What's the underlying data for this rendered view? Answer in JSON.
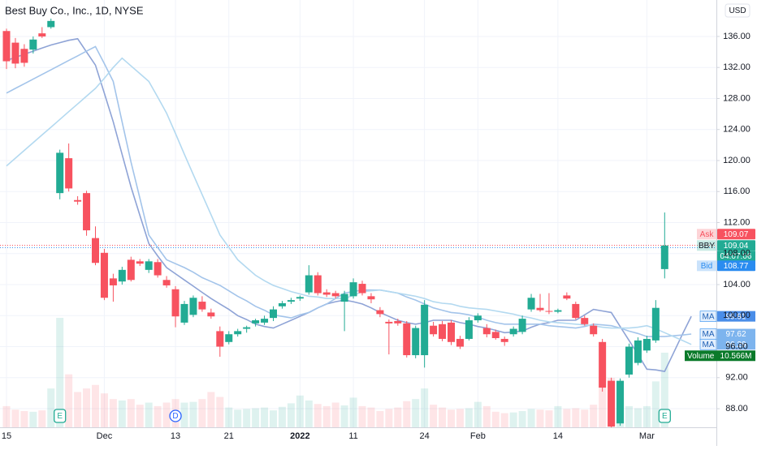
{
  "chart_data": {
    "type": "candlestick",
    "title": "Best Buy Co., Inc., 1D, NYSE",
    "currency": "USD",
    "categories": [
      "15",
      null,
      null,
      null,
      null,
      null,
      null,
      null,
      null,
      null,
      null,
      "Dec",
      null,
      null,
      null,
      null,
      null,
      null,
      null,
      "13",
      null,
      null,
      null,
      null,
      null,
      "21",
      null,
      null,
      null,
      null,
      null,
      null,
      null,
      "2022",
      null,
      null,
      null,
      null,
      null,
      "11",
      null,
      null,
      null,
      null,
      null,
      null,
      null,
      "24",
      null,
      null,
      null,
      null,
      null,
      "Feb",
      null,
      null,
      null,
      null,
      null,
      null,
      null,
      null,
      "14",
      null,
      null,
      null,
      null,
      null,
      null,
      null,
      null,
      null,
      "Mar",
      null,
      null,
      null,
      null,
      null
    ],
    "up_color": "#22ab94",
    "down_color": "#f7525f",
    "open": [
      136.7,
      135.2,
      134.4,
      134.3,
      136.4,
      137.2,
      115.8,
      120.3,
      114.9,
      115.8,
      110.0,
      108.1,
      104.8,
      104.4,
      107.2,
      107.0,
      105.9,
      106.9,
      104.6,
      103.4,
      99.1,
      100.1,
      101.8,
      100.4,
      98.0,
      96.6,
      97.6,
      98.3,
      99.0,
      99.1,
      99.7,
      101.2,
      101.8,
      102.2,
      103.0,
      105.2,
      103.0,
      102.9,
      101.8,
      102.5,
      104.1,
      102.5,
      100.7,
      99.2,
      99.3,
      99.0,
      94.9,
      94.9,
      98.7,
      98.9,
      99.1,
      97.0,
      97.0,
      99.4,
      98.4,
      97.9,
      97.0,
      97.6,
      97.9,
      100.8,
      101.0,
      100.6,
      100.5,
      102.6,
      101.5,
      99.7,
      98.7,
      96.6,
      91.6,
      86.1,
      92.4,
      93.9,
      95.5,
      96.8,
      106.0,
      null,
      null,
      null
    ],
    "high": [
      137.0,
      135.8,
      135.0,
      136.0,
      137.2,
      138.3,
      121.4,
      122.2,
      115.4,
      116.1,
      111.5,
      108.6,
      105.4,
      106.3,
      107.6,
      107.3,
      107.3,
      107.3,
      105.1,
      103.8,
      101.9,
      102.6,
      102.5,
      100.9,
      98.6,
      98.0,
      98.3,
      98.7,
      99.6,
      100.0,
      101.2,
      101.9,
      102.3,
      102.6,
      106.5,
      105.6,
      103.4,
      103.2,
      103.2,
      104.8,
      104.5,
      102.9,
      101.1,
      99.5,
      99.6,
      99.3,
      98.7,
      102.0,
      99.2,
      99.3,
      99.4,
      97.4,
      99.8,
      100.3,
      98.9,
      98.2,
      97.3,
      98.6,
      100.0,
      102.8,
      102.8,
      102.9,
      100.9,
      103.0,
      101.8,
      100.0,
      99.0,
      97.0,
      92.0,
      91.9,
      96.4,
      97.2,
      97.4,
      102.0,
      113.3,
      null,
      null,
      null
    ],
    "low": [
      131.8,
      131.9,
      132.1,
      133.8,
      135.8,
      137.0,
      115.0,
      116.0,
      114.3,
      110.3,
      106.5,
      102.0,
      101.8,
      104.0,
      104.4,
      106.4,
      105.5,
      104.9,
      103.6,
      98.5,
      98.8,
      99.8,
      100.5,
      99.6,
      94.7,
      96.3,
      97.3,
      97.8,
      98.6,
      98.8,
      99.3,
      100.9,
      101.5,
      101.9,
      102.7,
      102.6,
      102.4,
      102.2,
      98.0,
      102.2,
      102.6,
      101.6,
      99.8,
      95.0,
      98.7,
      94.6,
      94.5,
      93.3,
      97.3,
      96.7,
      96.2,
      95.7,
      96.8,
      99.1,
      97.2,
      96.9,
      96.1,
      97.3,
      97.6,
      100.5,
      100.5,
      100.2,
      100.3,
      102.0,
      99.5,
      98.7,
      97.3,
      90.2,
      85.6,
      85.8,
      92.0,
      93.6,
      95.2,
      96.5,
      104.8,
      null,
      null,
      null
    ],
    "close": [
      132.8,
      132.5,
      132.6,
      135.6,
      136.0,
      138.0,
      121.0,
      116.4,
      114.7,
      111.0,
      106.8,
      102.3,
      103.9,
      105.9,
      104.6,
      106.7,
      107.0,
      105.2,
      103.9,
      99.9,
      101.5,
      102.3,
      100.8,
      99.9,
      96.0,
      97.6,
      98.0,
      98.5,
      99.4,
      99.6,
      100.8,
      101.6,
      102.0,
      102.4,
      105.2,
      102.9,
      102.7,
      102.5,
      102.8,
      104.3,
      102.9,
      102.1,
      100.2,
      99.0,
      99.0,
      94.9,
      98.4,
      101.4,
      97.6,
      97.0,
      96.6,
      96.0,
      99.4,
      100.0,
      97.6,
      97.1,
      96.6,
      98.3,
      99.6,
      102.3,
      100.7,
      100.5,
      100.7,
      102.2,
      99.7,
      98.9,
      97.6,
      90.7,
      85.7,
      91.6,
      96.0,
      96.8,
      97.0,
      101.0,
      109.04,
      null,
      null,
      null
    ],
    "moving_averages": [
      {
        "name": "MA",
        "color": "#8ea3d6",
        "values": [
          132.9,
          133.3,
          133.7,
          134.1,
          134.5,
          134.9,
          135.2,
          135.5,
          135.7,
          134.0,
          132.3,
          128.7,
          125.0,
          120.8,
          116.6,
          112.9,
          109.3,
          107.7,
          106.2,
          105.4,
          104.6,
          103.8,
          103.0,
          102.2,
          101.5,
          100.8,
          100.0,
          99.5,
          98.9,
          98.6,
          98.4,
          98.9,
          99.4,
          99.9,
          100.4,
          101.0,
          101.5,
          101.8,
          102.0,
          101.8,
          101.5,
          101.0,
          100.4,
          99.9,
          99.4,
          99.1,
          98.9,
          99.1,
          99.4,
          99.4,
          99.4,
          99.1,
          98.9,
          98.6,
          98.4,
          98.1,
          97.8,
          97.9,
          98.0,
          98.5,
          98.9,
          99.1,
          99.4,
          99.4,
          99.4,
          100.1,
          100.8,
          100.6,
          100.4,
          98.6,
          96.8,
          95.0,
          93.1,
          93.0,
          92.8,
          95.2,
          97.6,
          99.91
        ]
      },
      {
        "name": "MA",
        "color": "#a3c4ea",
        "values": [
          128.7,
          129.3,
          129.9,
          130.5,
          131.1,
          131.7,
          132.3,
          132.9,
          133.5,
          134.1,
          134.7,
          132.5,
          130.2,
          125.0,
          119.8,
          115.1,
          110.4,
          108.8,
          107.2,
          106.7,
          106.2,
          105.6,
          104.9,
          104.4,
          103.9,
          103.2,
          102.5,
          101.9,
          101.2,
          100.7,
          100.1,
          99.9,
          99.7,
          100.1,
          100.4,
          101.0,
          101.5,
          102.2,
          102.9,
          103.1,
          103.3,
          103.3,
          103.3,
          103.1,
          102.9,
          102.4,
          102.0,
          101.5,
          101.0,
          100.7,
          100.4,
          100.3,
          100.1,
          99.8,
          99.4,
          99.1,
          98.9,
          98.9,
          98.9,
          98.9,
          98.9,
          98.7,
          98.6,
          98.5,
          98.4,
          98.6,
          98.9,
          98.8,
          98.7,
          98.4,
          98.0,
          97.7,
          97.3,
          97.3,
          97.3,
          97.4,
          97.5,
          97.62
        ]
      },
      {
        "name": "MA",
        "color": "#b3d9f0",
        "values": [
          119.3,
          120.3,
          121.3,
          122.3,
          123.3,
          124.3,
          125.3,
          126.3,
          127.3,
          128.3,
          129.3,
          130.6,
          132.0,
          133.2,
          132.2,
          131.2,
          130.2,
          128.2,
          126.1,
          123.5,
          120.8,
          118.2,
          115.6,
          113.0,
          110.4,
          108.8,
          107.2,
          106.2,
          105.2,
          104.5,
          103.9,
          103.5,
          103.1,
          102.8,
          102.5,
          102.4,
          102.2,
          102.2,
          102.2,
          102.6,
          103.1,
          103.2,
          103.3,
          103.1,
          102.9,
          102.7,
          102.5,
          102.2,
          101.8,
          101.6,
          101.5,
          101.2,
          101.0,
          100.9,
          100.8,
          100.6,
          100.4,
          100.2,
          99.9,
          99.7,
          99.4,
          99.2,
          99.1,
          99.0,
          98.9,
          98.8,
          98.7,
          98.5,
          98.4,
          98.4,
          98.4,
          98.5,
          98.7,
          98.3,
          97.8,
          97.3,
          96.8,
          96.29
        ]
      }
    ],
    "volume": {
      "name": "Volume",
      "color": "#0a7a2a",
      "values": [
        3000000,
        2500000,
        2300000,
        2200000,
        2400000,
        5500000,
        15500000,
        7500000,
        5000000,
        5500000,
        6000000,
        4800000,
        4000000,
        3800000,
        4000000,
        3200000,
        3500000,
        3000000,
        3500000,
        4000000,
        3500000,
        3600000,
        4000000,
        5000000,
        4300000,
        2800000,
        2500000,
        2600000,
        2700000,
        2800000,
        2400000,
        2900000,
        3400000,
        4500000,
        3800000,
        3300000,
        3000000,
        3500000,
        3100000,
        4200000,
        3000000,
        2800000,
        2300000,
        2600000,
        2800000,
        3700000,
        4000000,
        5500000,
        3200000,
        2800000,
        2500000,
        2600000,
        2700000,
        3600000,
        3000000,
        2200000,
        2000000,
        2100000,
        2300000,
        2600000,
        2500000,
        2400000,
        3000000,
        2600000,
        2700000,
        2500000,
        3200000,
        5500000,
        7000000,
        4200000,
        3000000,
        2700000,
        3000000,
        6500000,
        10566000,
        null,
        null,
        null
      ],
      "value_label": "10.566M"
    },
    "events": [
      null,
      null,
      null,
      null,
      null,
      null,
      "E",
      null,
      null,
      null,
      null,
      null,
      null,
      null,
      null,
      null,
      null,
      null,
      null,
      "D",
      null,
      null,
      null,
      null,
      null,
      null,
      null,
      null,
      null,
      null,
      null,
      null,
      null,
      null,
      null,
      null,
      null,
      null,
      null,
      null,
      null,
      null,
      null,
      null,
      null,
      null,
      null,
      null,
      null,
      null,
      null,
      null,
      null,
      null,
      null,
      null,
      null,
      null,
      null,
      null,
      null,
      null,
      null,
      null,
      null,
      null,
      null,
      null,
      null,
      null,
      null,
      null,
      null,
      null,
      "E",
      null,
      null,
      null
    ],
    "quotes": [
      {
        "name": "Ask",
        "value": 109.07,
        "color": "#f7525f"
      },
      {
        "name": "BBY",
        "value": 109.04,
        "countdown": "04:07:06",
        "color": "#22ab94"
      },
      {
        "name": "Bid",
        "value": 108.77,
        "color": "#2a8cf0"
      }
    ],
    "ylim": [
      85.6,
      140.7
    ],
    "yticks": [
      {
        "value": 88,
        "label": "88.00"
      },
      {
        "value": 92,
        "label": "92.00"
      },
      {
        "value": 96,
        "label": "96.00"
      },
      {
        "value": 100,
        "label": "100.00"
      },
      {
        "value": 104,
        "label": "104.00"
      },
      {
        "value": 108,
        "label": "108.00"
      },
      {
        "value": 112,
        "label": "112.00"
      },
      {
        "value": 116,
        "label": "116.00"
      },
      {
        "value": 120,
        "label": "120.00"
      },
      {
        "value": 124,
        "label": "124.00"
      },
      {
        "value": 128,
        "label": "128.00"
      },
      {
        "value": 132,
        "label": "132.00"
      },
      {
        "value": 136,
        "label": "136.00"
      }
    ],
    "grid": true
  }
}
